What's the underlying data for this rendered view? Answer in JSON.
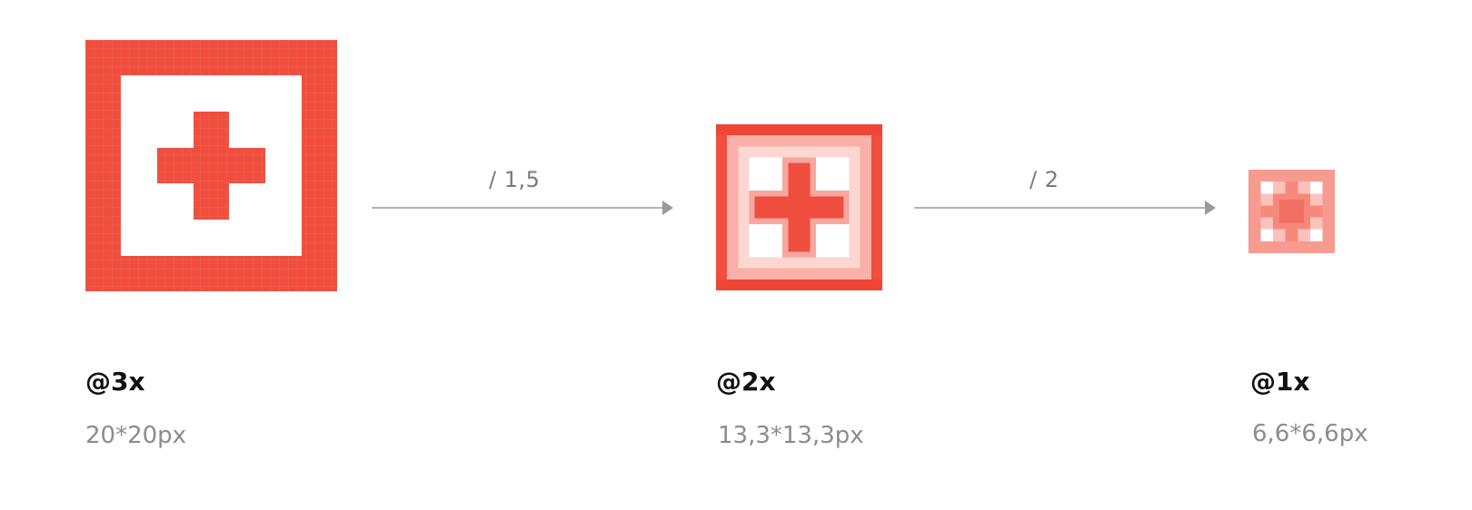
{
  "colors": {
    "accent": "#f04e3e",
    "arrow": "#9a9a9a",
    "scale_text": "#111111",
    "size_text": "#8c8c8c",
    "ratio_text": "#7a7a7a"
  },
  "icons": [
    {
      "name": "icon-3x",
      "scale_label": "@3x",
      "size_label": "20*20px"
    },
    {
      "name": "icon-2x",
      "scale_label": "@2x",
      "size_label": "13,3*13,3px"
    },
    {
      "name": "icon-1x",
      "scale_label": "@1x",
      "size_label": "6,6*6,6px"
    }
  ],
  "arrows": [
    {
      "label": "/ 1,5"
    },
    {
      "label": "/ 2"
    }
  ]
}
